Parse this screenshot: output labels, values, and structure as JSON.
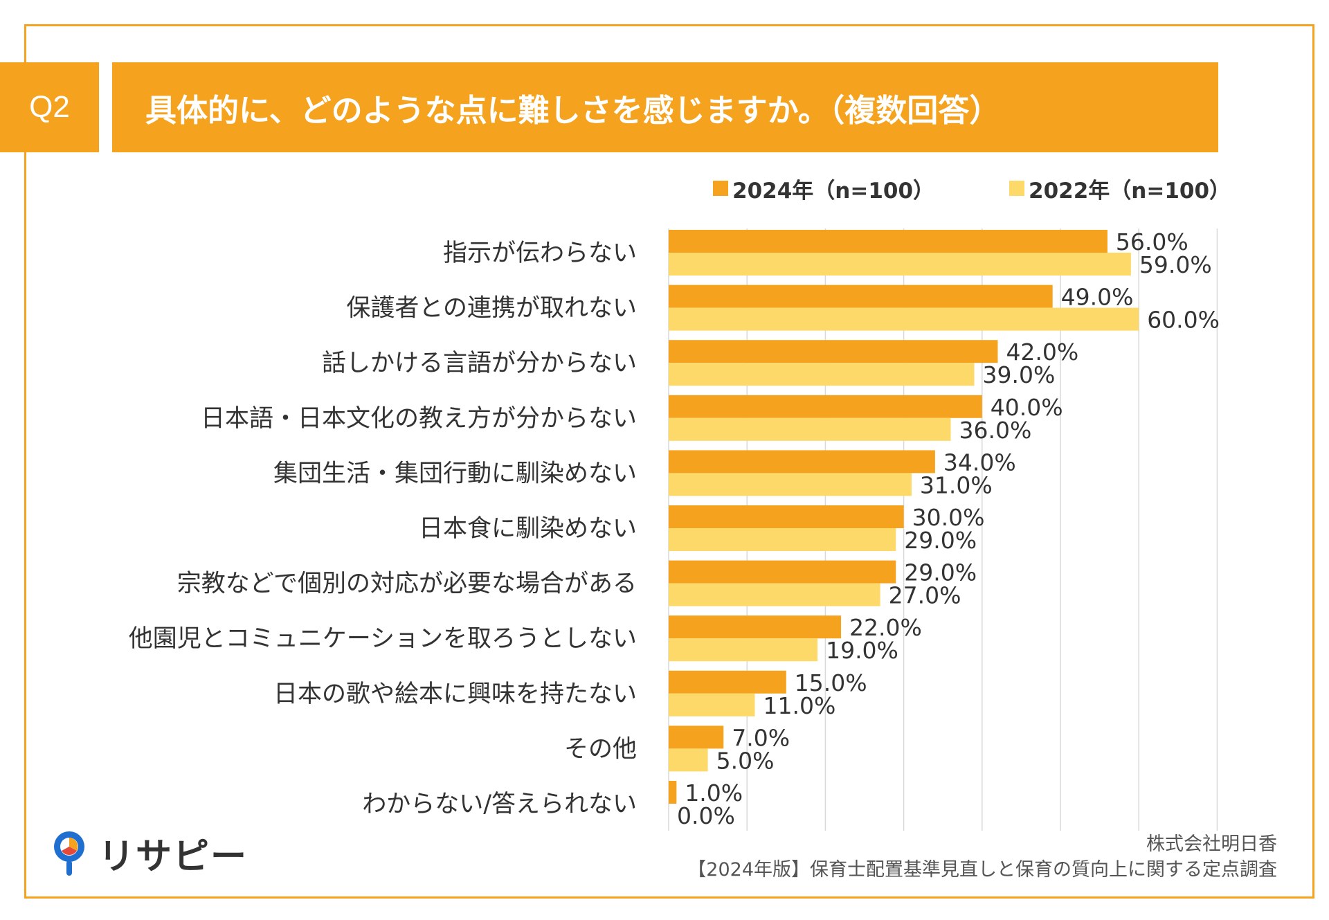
{
  "header": {
    "question_no": "Q2",
    "question_text": "具体的に、どのような点に難しさを感じますか。（複数回答）"
  },
  "colors": {
    "accent": "#f5a31f",
    "series_2024": "#f5a31f",
    "series_2022": "#fdd96a",
    "grid": "#d9d9d9"
  },
  "chart_data": {
    "type": "bar",
    "orientation": "horizontal",
    "categories": [
      "指示が伝わらない",
      "保護者との連携が取れない",
      "話しかける言語が分からない",
      "日本語・日本文化の教え方が分からない",
      "集団生活・集団行動に馴染めない",
      "日本食に馴染めない",
      "宗教などで個別の対応が必要な場合がある",
      "他園児とコミュニケーションを取ろうとしない",
      "日本の歌や絵本に興味を持たない",
      "その他",
      "わからない/答えられない"
    ],
    "series": [
      {
        "name": "2024年（n=100）",
        "values": [
          56.0,
          49.0,
          42.0,
          40.0,
          34.0,
          30.0,
          29.0,
          22.0,
          15.0,
          7.0,
          1.0
        ]
      },
      {
        "name": "2022年（n=100）",
        "values": [
          59.0,
          60.0,
          39.0,
          36.0,
          31.0,
          29.0,
          27.0,
          19.0,
          11.0,
          5.0,
          0.0
        ]
      }
    ],
    "value_suffix": "%",
    "xlim": [
      0,
      70
    ],
    "grid": true,
    "legend_position": "top-right"
  },
  "footer": {
    "company": "株式会社明日香",
    "source": "【2024年版】保育士配置基準見直しと保育の質向上に関する定点調査",
    "logo_text": "リサピー"
  }
}
